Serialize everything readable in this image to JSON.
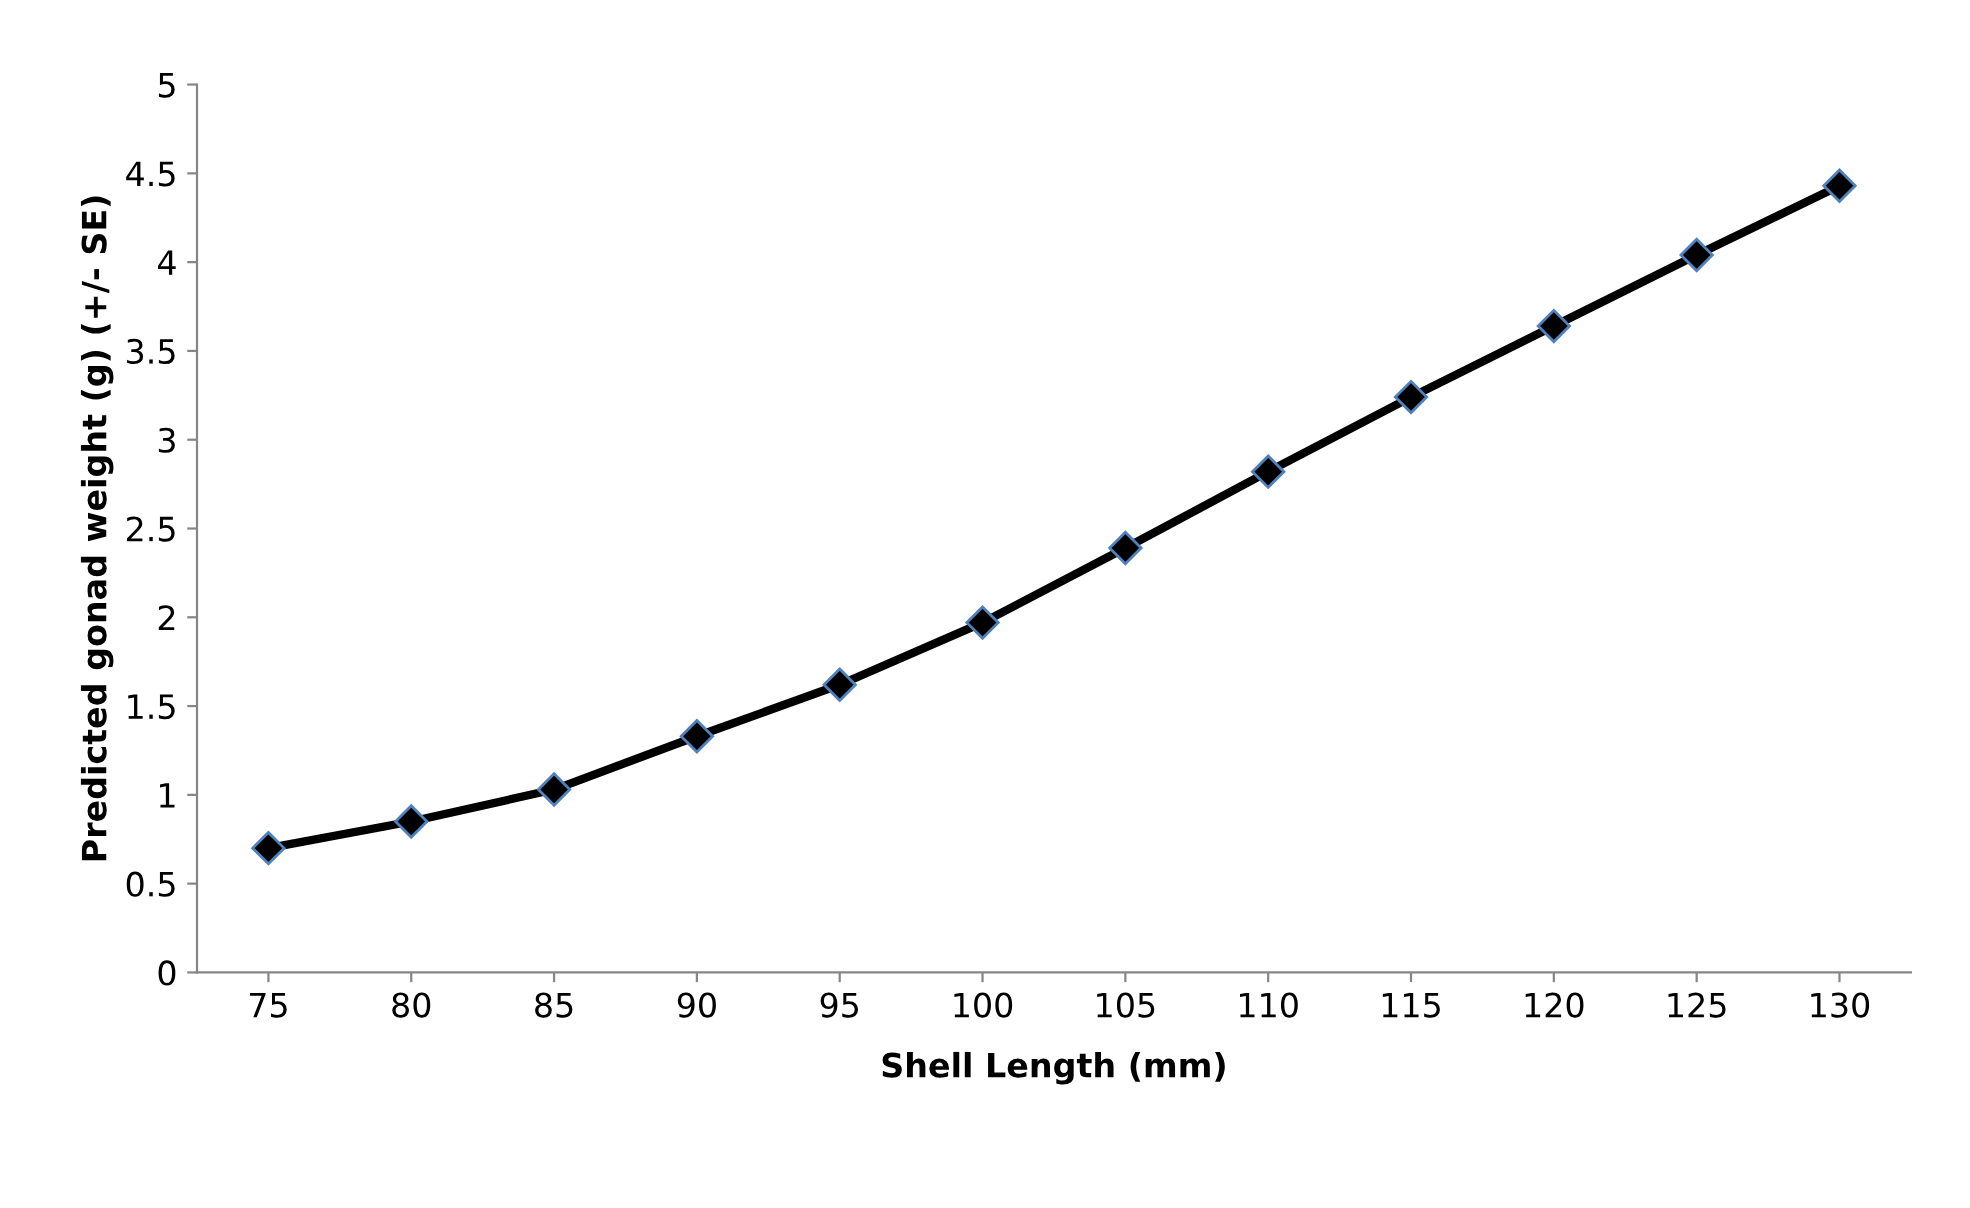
{
  "chart_data": {
    "type": "line",
    "xlabel": "Shell Length (mm)",
    "ylabel": "Predicted gonad weight (g) (+/- SE)",
    "categories": [
      "75",
      "80",
      "85",
      "90",
      "95",
      "100",
      "105",
      "110",
      "115",
      "120",
      "125",
      "130"
    ],
    "series": [
      {
        "color": "#000000",
        "values": [
          0.7,
          0.85,
          1.03,
          1.33,
          1.62,
          1.97,
          2.39,
          2.82,
          3.24,
          3.64,
          4.04,
          4.43
        ]
      }
    ],
    "ylim": [
      0,
      5
    ],
    "yticks": [
      0,
      0.5,
      1,
      1.5,
      2,
      2.5,
      3,
      3.5,
      4,
      4.5,
      5
    ],
    "grid": false,
    "marker": "diamond",
    "line_style": "solid"
  }
}
